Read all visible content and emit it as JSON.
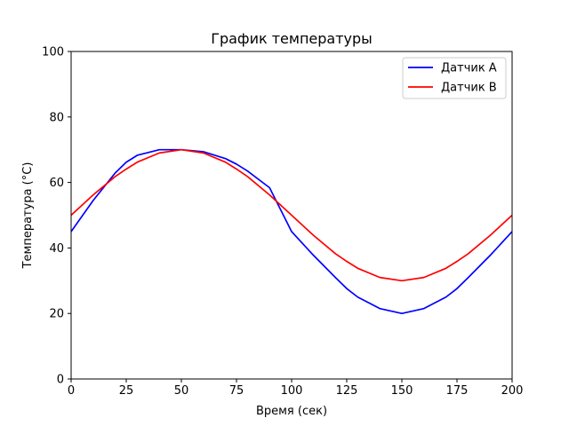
{
  "chart_data": {
    "type": "line",
    "title": "График температуры",
    "xlabel": "Время (сек)",
    "ylabel": "Температура (°C)",
    "xlim": [
      0,
      200
    ],
    "ylim": [
      0,
      100
    ],
    "xticks": [
      0,
      25,
      50,
      75,
      100,
      125,
      150,
      175,
      200
    ],
    "yticks": [
      0,
      20,
      40,
      60,
      80,
      100
    ],
    "grid": false,
    "legend_position": "top-right",
    "x": [
      0,
      10,
      20,
      25,
      30,
      40,
      50,
      60,
      70,
      75,
      80,
      90,
      100,
      110,
      120,
      125,
      130,
      140,
      150,
      160,
      170,
      175,
      180,
      190,
      200
    ],
    "series": [
      {
        "name": "Датчик A",
        "color": "#0000ff",
        "values": [
          45.0,
          54.5,
          62.9,
          66.2,
          68.3,
          70.0,
          70.0,
          69.4,
          67.3,
          65.6,
          63.5,
          58.4,
          45.0,
          37.7,
          30.9,
          27.6,
          25.0,
          21.5,
          20.0,
          21.5,
          25.0,
          27.6,
          30.9,
          37.7,
          45.0
        ]
      },
      {
        "name": "Датчик B",
        "color": "#ff0000",
        "values": [
          50.0,
          56.2,
          61.8,
          64.1,
          66.2,
          69.0,
          70.0,
          69.0,
          66.2,
          64.1,
          61.8,
          56.2,
          50.0,
          43.8,
          38.2,
          35.9,
          33.8,
          31.0,
          30.0,
          31.0,
          33.8,
          35.9,
          38.2,
          43.8,
          50.0
        ]
      }
    ]
  }
}
